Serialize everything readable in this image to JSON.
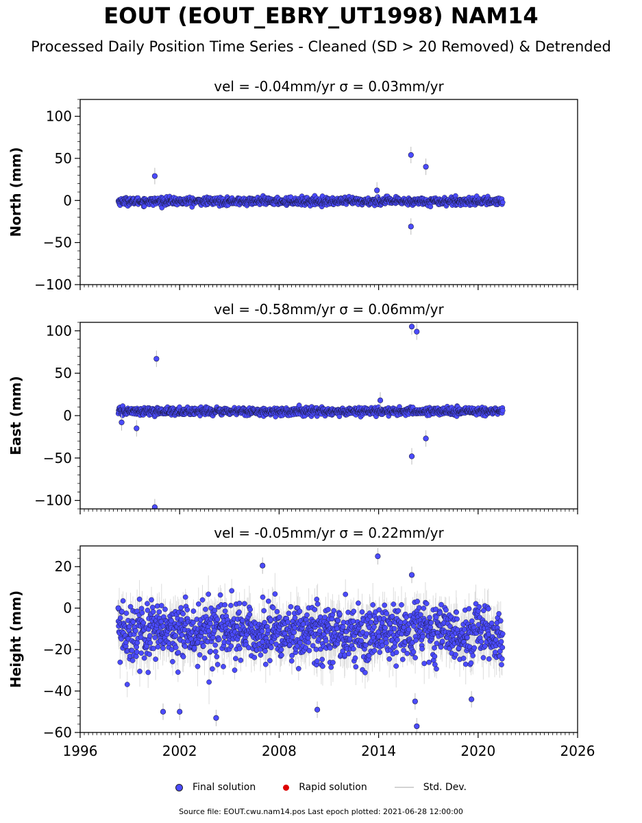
{
  "page": {
    "title": "EOUT (EOUT_EBRY_UT1998) NAM14",
    "subtitle": "Processed Daily Position Time Series - Cleaned (SD > 20 Removed) & Detrended",
    "footer": "Source file: EOUT.cwu.nam14.pos  Last epoch plotted: 2021-06-28 12:00:00"
  },
  "colors": {
    "final": "#4b4bff",
    "rapid": "#dd0000",
    "std": "#d3d3d3"
  },
  "legend": {
    "final": "Final solution",
    "rapid": "Rapid solution",
    "std": "Std. Dev."
  },
  "chart_data": [
    {
      "type": "scatter",
      "title": "vel = -0.04mm/yr   σ = 0.03mm/yr",
      "ylabel": "North (mm)",
      "xlim": [
        1996,
        2026
      ],
      "ylim": [
        -100,
        120
      ],
      "yticks": [
        -100,
        -50,
        0,
        50,
        100
      ],
      "ytick_labels": [
        "−100",
        "−50",
        "0",
        "50",
        "100"
      ],
      "xticks": [
        1996,
        2002,
        2008,
        2014,
        2020,
        2026
      ],
      "xtick_labels": [
        "",
        "",
        "",
        "",
        "",
        ""
      ],
      "data_range": [
        1998.3,
        2021.49
      ],
      "noise": {
        "center": -1,
        "scatter": 2.2,
        "std": 3
      },
      "outliers": [
        {
          "x": 2000.5,
          "y": 29
        },
        {
          "x": 2015.95,
          "y": 54
        },
        {
          "x": 2016.85,
          "y": 40
        },
        {
          "x": 2015.95,
          "y": -31
        },
        {
          "x": 2013.9,
          "y": 12
        }
      ]
    },
    {
      "type": "scatter",
      "title": "vel = -0.58mm/yr   σ = 0.06mm/yr",
      "ylabel": "East (mm)",
      "xlim": [
        1996,
        2026
      ],
      "ylim": [
        -110,
        110
      ],
      "yticks": [
        -100,
        -50,
        0,
        50,
        100
      ],
      "ytick_labels": [
        "−100",
        "−50",
        "0",
        "50",
        "100"
      ],
      "xticks": [
        1996,
        2002,
        2008,
        2014,
        2020,
        2026
      ],
      "xtick_labels": [
        "",
        "",
        "",
        "",
        "",
        ""
      ],
      "data_range": [
        1998.3,
        2021.49
      ],
      "noise": {
        "center": 5,
        "scatter": 2.2,
        "std": 3
      },
      "outliers": [
        {
          "x": 2000.6,
          "y": 67
        },
        {
          "x": 2000.5,
          "y": -108
        },
        {
          "x": 2016.0,
          "y": 105
        },
        {
          "x": 2016.3,
          "y": 99
        },
        {
          "x": 2016.0,
          "y": -48
        },
        {
          "x": 2016.85,
          "y": -27
        },
        {
          "x": 1999.4,
          "y": -15
        },
        {
          "x": 1998.5,
          "y": -8
        },
        {
          "x": 2014.1,
          "y": 18
        }
      ]
    },
    {
      "type": "scatter",
      "title": "vel = -0.05mm/yr   σ = 0.22mm/yr",
      "ylabel": "Height (mm)",
      "xlim": [
        1996,
        2026
      ],
      "ylim": [
        -60,
        30
      ],
      "yticks": [
        -60,
        -40,
        -20,
        0,
        20
      ],
      "ytick_labels": [
        "−60",
        "−40",
        "−20",
        "0",
        "20"
      ],
      "xticks": [
        1996,
        2002,
        2008,
        2014,
        2020,
        2026
      ],
      "xtick_labels": [
        "1996",
        "2002",
        "2008",
        "2014",
        "2020",
        "2026"
      ],
      "data_range": [
        1998.3,
        2021.49
      ],
      "noise": {
        "center": -12,
        "scatter": 7,
        "std": 9
      },
      "outliers": [
        {
          "x": 1998.3,
          "y": 0
        },
        {
          "x": 2004.2,
          "y": -53
        },
        {
          "x": 2016.3,
          "y": -57
        },
        {
          "x": 2013.95,
          "y": 25
        },
        {
          "x": 2007.0,
          "y": 20.5
        },
        {
          "x": 2001.0,
          "y": -50
        },
        {
          "x": 2002.0,
          "y": -50
        },
        {
          "x": 2010.3,
          "y": -49
        },
        {
          "x": 2016.0,
          "y": 16
        },
        {
          "x": 2019.6,
          "y": -44
        },
        {
          "x": 2016.2,
          "y": -45
        }
      ]
    }
  ]
}
